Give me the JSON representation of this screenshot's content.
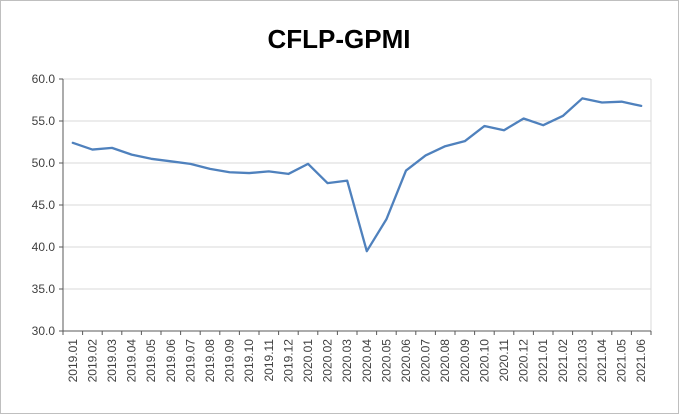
{
  "chart_data": {
    "type": "line",
    "title": "CFLP-GPMI",
    "categories": [
      "2019.01",
      "2019.02",
      "2019.03",
      "2019.04",
      "2019.05",
      "2019.06",
      "2019.07",
      "2019.08",
      "2019.09",
      "2019.10",
      "2019.11",
      "2019.12",
      "2020.01",
      "2020.02",
      "2020.03",
      "2020.04",
      "2020.05",
      "2020.06",
      "2020.07",
      "2020.08",
      "2020.09",
      "2020.10",
      "2020.11",
      "2020.12",
      "2021.01",
      "2021.02",
      "2021.03",
      "2021.04",
      "2021.05",
      "2021.06"
    ],
    "values": [
      52.4,
      51.6,
      51.8,
      51.0,
      50.5,
      50.2,
      49.9,
      49.3,
      48.9,
      48.8,
      49.0,
      48.7,
      49.9,
      47.6,
      47.9,
      39.5,
      43.3,
      49.1,
      50.9,
      52.0,
      52.6,
      54.4,
      53.9,
      55.3,
      54.5,
      55.6,
      57.7,
      57.2,
      57.3,
      56.8
    ],
    "xlabel": "",
    "ylabel": "",
    "ylim": [
      30.0,
      60.0
    ],
    "ytick_step": 5.0,
    "ytick_format_decimals": 1,
    "grid": "horizontal",
    "legend_position": "none",
    "line_color": "#4F81BD",
    "gridline_color": "#d9d9d9",
    "axis_color": "#595959",
    "label_color": "#3f3f3f"
  }
}
